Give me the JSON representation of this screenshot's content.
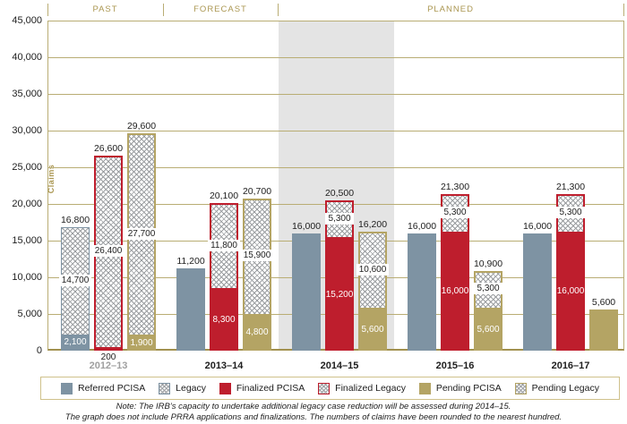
{
  "colors": {
    "referred": "#7e93a3",
    "finalized": "#be1e2d",
    "pending": "#b4a464",
    "grid": "#b9ad74",
    "axis": "#a2914f",
    "band": "#e4e4e4",
    "gold_text": "#ab9752",
    "hatch_line": "#9b9ea1",
    "dim_year": "#9f9f9f",
    "text": "#1d1d1d",
    "legend_border": "#cfc18b"
  },
  "chart_data": {
    "type": "bar",
    "subtype": "grouped-stacked-bar",
    "ylabel": "Claims",
    "ylim": [
      0,
      45000
    ],
    "ytick_step": 5000,
    "grid": true,
    "sections": [
      {
        "label": "PAST",
        "groups": [
          0
        ]
      },
      {
        "label": "FORECAST",
        "groups": [
          1
        ]
      },
      {
        "label": "PLANNED",
        "groups": [
          2,
          3,
          4
        ]
      }
    ],
    "highlighted_group": 2,
    "stacks": [
      "referred",
      "finalized",
      "pending"
    ],
    "groups": [
      {
        "year": "2012–13",
        "dim": true,
        "referred": {
          "pcisa": 2100,
          "legacy": 14700,
          "total": 16800
        },
        "finalized": {
          "pcisa": 200,
          "legacy": 26400,
          "total": 26600
        },
        "pending": {
          "pcisa": 1900,
          "legacy": 27700,
          "total": 29600
        }
      },
      {
        "year": "2013–14",
        "dim": false,
        "referred": {
          "pcisa": 11200,
          "legacy": 0,
          "total": 11200
        },
        "finalized": {
          "pcisa": 8300,
          "legacy": 11800,
          "total": 20100
        },
        "pending": {
          "pcisa": 4800,
          "legacy": 15900,
          "total": 20700
        }
      },
      {
        "year": "2014–15",
        "dim": false,
        "referred": {
          "pcisa": 16000,
          "legacy": 0,
          "total": 16000
        },
        "finalized": {
          "pcisa": 15200,
          "legacy": 5300,
          "total": 20500
        },
        "pending": {
          "pcisa": 5600,
          "legacy": 10600,
          "total": 16200
        }
      },
      {
        "year": "2015–16",
        "dim": false,
        "referred": {
          "pcisa": 16000,
          "legacy": 0,
          "total": 16000
        },
        "finalized": {
          "pcisa": 16000,
          "legacy": 5300,
          "total": 21300
        },
        "pending": {
          "pcisa": 5600,
          "legacy": 5300,
          "total": 10900
        }
      },
      {
        "year": "2016–17",
        "dim": false,
        "referred": {
          "pcisa": 16000,
          "legacy": 0,
          "total": 16000
        },
        "finalized": {
          "pcisa": 16000,
          "legacy": 5300,
          "total": 21300
        },
        "pending": {
          "pcisa": 5600,
          "legacy": 0,
          "total": 5600
        }
      }
    ]
  },
  "legend": {
    "items": [
      {
        "label": "Referred PCISA",
        "swatch": "solid",
        "color": "#7e93a3"
      },
      {
        "label": "Legacy",
        "swatch": "hatch",
        "color": "#7e93a3"
      },
      {
        "label": "Finalized PCISA",
        "swatch": "solid",
        "color": "#be1e2d"
      },
      {
        "label": "Finalized Legacy",
        "swatch": "hatch",
        "color": "#be1e2d"
      },
      {
        "label": "Pending PCISA",
        "swatch": "solid",
        "color": "#b4a464"
      },
      {
        "label": "Pending Legacy",
        "swatch": "hatch",
        "color": "#b4a464"
      }
    ]
  },
  "notes": {
    "line1": "Note: The IRB’s capacity to undertake additional legacy case reduction will be assessed during 2014–15.",
    "line2": "The graph does not include PRRA applications and finalizations. The numbers of claims have been rounded to the nearest hundred."
  }
}
